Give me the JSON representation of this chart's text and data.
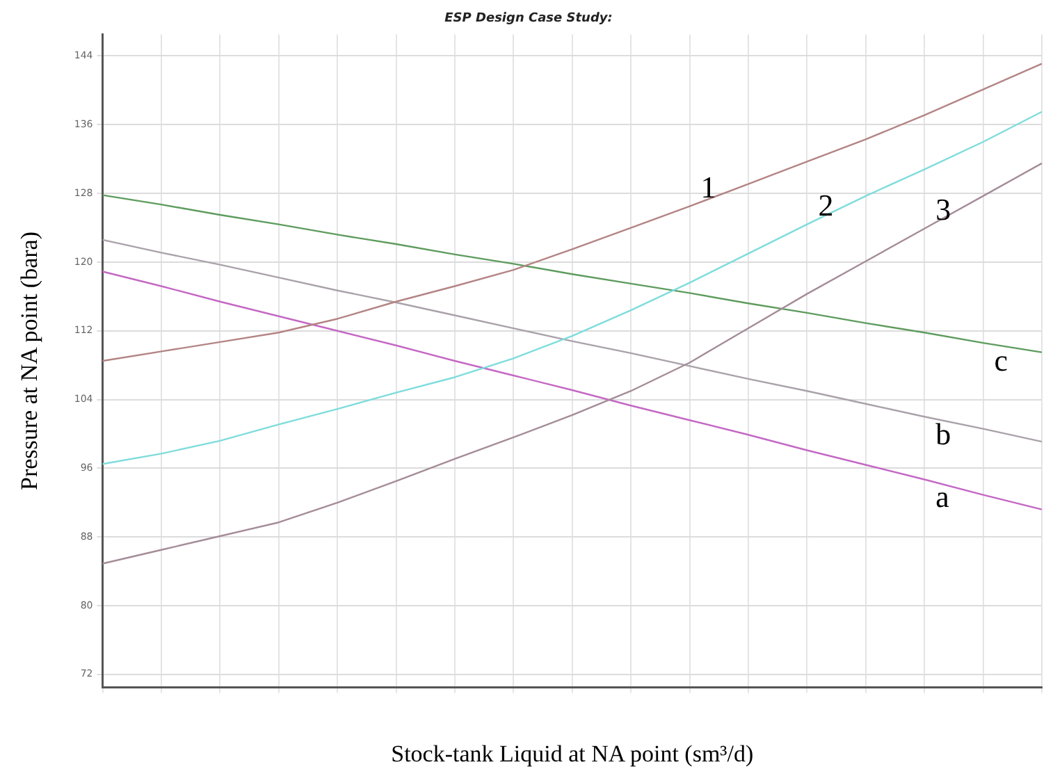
{
  "chart_data": {
    "type": "line",
    "title": "ESP Design Case Study:",
    "xlabel": "Stock-tank Liquid at NA point (sm³/d)",
    "ylabel": "Pressure at NA point (bara)",
    "categories": [
      null,
      null,
      null,
      null,
      null,
      null,
      null,
      null,
      null,
      null,
      null,
      null,
      null,
      null,
      null,
      null,
      null
    ],
    "series": [
      {
        "name": "1",
        "color": "#b48484",
        "values": [
          108.5,
          109.6,
          110.7,
          111.8,
          113.4,
          115.4,
          117.2,
          119.1,
          121.5,
          124.0,
          126.5,
          129.1,
          131.7,
          134.3,
          137.1,
          140.1,
          143.1
        ]
      },
      {
        "name": "2",
        "color": "#7fdcdc",
        "values": [
          96.5,
          97.7,
          99.2,
          101.1,
          102.9,
          104.8,
          106.6,
          108.8,
          111.4,
          114.4,
          117.6,
          121.0,
          124.4,
          127.7,
          130.8,
          134.0,
          137.5
        ]
      },
      {
        "name": "3",
        "color": "#a48c98",
        "values": [
          84.9,
          86.5,
          88.1,
          89.7,
          92.0,
          94.5,
          97.1,
          99.6,
          102.2,
          105.0,
          108.3,
          112.3,
          116.3,
          120.1,
          123.9,
          127.7,
          131.5
        ]
      },
      {
        "name": "a",
        "color": "#c468c4",
        "values": [
          118.9,
          117.2,
          115.4,
          113.7,
          112.0,
          110.3,
          108.5,
          106.8,
          105.1,
          103.3,
          101.6,
          99.9,
          98.1,
          96.4,
          94.7,
          92.9,
          91.2
        ]
      },
      {
        "name": "b",
        "color": "#aaa2aa",
        "values": [
          122.6,
          121.1,
          119.7,
          118.2,
          116.7,
          115.3,
          113.8,
          112.3,
          110.8,
          109.4,
          107.9,
          106.4,
          105.0,
          103.5,
          102.0,
          100.6,
          99.1
        ]
      },
      {
        "name": "c",
        "color": "#5e9c5e",
        "values": [
          127.8,
          126.7,
          125.5,
          124.4,
          123.2,
          122.1,
          120.9,
          119.8,
          118.6,
          117.5,
          116.4,
          115.2,
          114.1,
          112.9,
          111.8,
          110.6,
          109.5
        ]
      }
    ],
    "ylim": [
      70.5,
      146.5
    ],
    "yticks": [
      72,
      80,
      88,
      96,
      104,
      112,
      120,
      128,
      136,
      144
    ],
    "grid": true,
    "legend": false,
    "marker": "none",
    "line_style": "solid"
  }
}
